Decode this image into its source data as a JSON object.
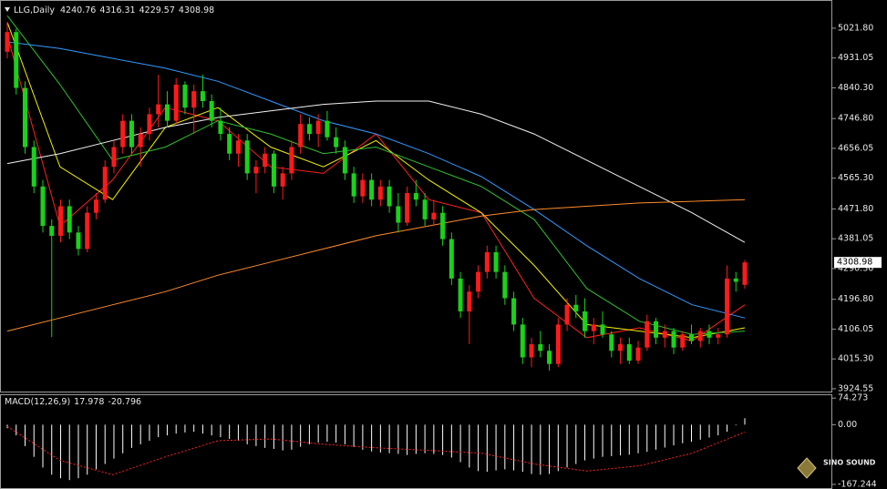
{
  "chart_data": [
    {
      "type": "candlestick",
      "title": "LLG,Daily",
      "up_color": "#ff1a1a",
      "down_color": "#19d219",
      "candles": [
        [
          4950,
          5040,
          4930,
          5010
        ],
        [
          5010,
          5020,
          4820,
          4840
        ],
        [
          4840,
          4860,
          4640,
          4660
        ],
        [
          4660,
          4680,
          4520,
          4540
        ],
        [
          4540,
          4560,
          4400,
          4420
        ],
        [
          4420,
          4440,
          4082,
          4390
        ],
        [
          4390,
          4500,
          4370,
          4480
        ],
        [
          4480,
          4500,
          4380,
          4400
        ],
        [
          4400,
          4420,
          4330,
          4350
        ],
        [
          4350,
          4480,
          4340,
          4460
        ],
        [
          4460,
          4520,
          4440,
          4500
        ],
        [
          4500,
          4620,
          4490,
          4600
        ],
        [
          4600,
          4680,
          4580,
          4660
        ],
        [
          4660,
          4760,
          4640,
          4740
        ],
        [
          4740,
          4760,
          4640,
          4660
        ],
        [
          4660,
          4720,
          4600,
          4700
        ],
        [
          4700,
          4780,
          4680,
          4760
        ],
        [
          4760,
          4880,
          4720,
          4790
        ],
        [
          4790,
          4830,
          4720,
          4740
        ],
        [
          4740,
          4870,
          4730,
          4850
        ],
        [
          4850,
          4860,
          4760,
          4780
        ],
        [
          4780,
          4850,
          4700,
          4830
        ],
        [
          4830,
          4880,
          4780,
          4800
        ],
        [
          4800,
          4820,
          4720,
          4740
        ],
        [
          4740,
          4780,
          4680,
          4700
        ],
        [
          4700,
          4720,
          4620,
          4640
        ],
        [
          4640,
          4700,
          4600,
          4680
        ],
        [
          4680,
          4700,
          4560,
          4580
        ],
        [
          4580,
          4620,
          4520,
          4600
        ],
        [
          4600,
          4660,
          4580,
          4640
        ],
        [
          4640,
          4650,
          4520,
          4540
        ],
        [
          4540,
          4600,
          4500,
          4580
        ],
        [
          4580,
          4680,
          4560,
          4660
        ],
        [
          4660,
          4760,
          4640,
          4730
        ],
        [
          4730,
          4750,
          4680,
          4700
        ],
        [
          4700,
          4760,
          4660,
          4740
        ],
        [
          4740,
          4770,
          4680,
          4690
        ],
        [
          4690,
          4720,
          4640,
          4660
        ],
        [
          4660,
          4680,
          4560,
          4580
        ],
        [
          4580,
          4600,
          4490,
          4510
        ],
        [
          4510,
          4580,
          4490,
          4560
        ],
        [
          4560,
          4580,
          4480,
          4500
        ],
        [
          4500,
          4560,
          4480,
          4540
        ],
        [
          4540,
          4560,
          4460,
          4480
        ],
        [
          4480,
          4520,
          4400,
          4430
        ],
        [
          4430,
          4540,
          4420,
          4520
        ],
        [
          4520,
          4560,
          4480,
          4500
        ],
        [
          4500,
          4520,
          4420,
          4440
        ],
        [
          4440,
          4500,
          4420,
          4460
        ],
        [
          4460,
          4480,
          4360,
          4380
        ],
        [
          4380,
          4400,
          4240,
          4260
        ],
        [
          4260,
          4280,
          4140,
          4160
        ],
        [
          4160,
          4240,
          4060,
          4220
        ],
        [
          4220,
          4300,
          4200,
          4280
        ],
        [
          4280,
          4360,
          4260,
          4340
        ],
        [
          4340,
          4360,
          4260,
          4280
        ],
        [
          4280,
          4300,
          4180,
          4200
        ],
        [
          4200,
          4220,
          4100,
          4120
        ],
        [
          4120,
          4140,
          4000,
          4020
        ],
        [
          4020,
          4080,
          3990,
          4060
        ],
        [
          4060,
          4100,
          4020,
          4040
        ],
        [
          4040,
          4060,
          3980,
          4000
        ],
        [
          4000,
          4140,
          3990,
          4120
        ],
        [
          4120,
          4200,
          4100,
          4180
        ],
        [
          4180,
          4210,
          4140,
          4160
        ],
        [
          4160,
          4200,
          4080,
          4100
        ],
        [
          4100,
          4140,
          4060,
          4120
        ],
        [
          4120,
          4160,
          4080,
          4090
        ],
        [
          4090,
          4100,
          4020,
          4040
        ],
        [
          4040,
          4080,
          4000,
          4060
        ],
        [
          4060,
          4080,
          4000,
          4010
        ],
        [
          4010,
          4070,
          4000,
          4050
        ],
        [
          4050,
          4150,
          4040,
          4130
        ],
        [
          4130,
          4140,
          4060,
          4080
        ],
        [
          4080,
          4120,
          4050,
          4100
        ],
        [
          4100,
          4110,
          4030,
          4050
        ],
        [
          4050,
          4100,
          4040,
          4090
        ],
        [
          4090,
          4120,
          4060,
          4070
        ],
        [
          4070,
          4110,
          4050,
          4100
        ],
        [
          4100,
          4120,
          4060,
          4080
        ],
        [
          4080,
          4110,
          4060,
          4090
        ],
        [
          4090,
          4300,
          4080,
          4260
        ],
        [
          4260,
          4280,
          4220,
          4250
        ],
        [
          4240.76,
          4316.31,
          4229.57,
          4308.98
        ]
      ],
      "series": [
        {
          "color": "#ff2020",
          "values": [
            5000,
            4420,
            4560,
            4780,
            4740,
            4600,
            4580,
            4700,
            4500,
            4460,
            4200,
            4080,
            4110,
            4070,
            4180
          ]
        },
        {
          "color": "#f0f000",
          "values": [
            5040,
            4600,
            4500,
            4720,
            4780,
            4660,
            4600,
            4680,
            4560,
            4460,
            4300,
            4120,
            4100,
            4080,
            4110
          ]
        },
        {
          "color": "#30c030",
          "values": [
            5060,
            4850,
            4620,
            4660,
            4740,
            4700,
            4640,
            4660,
            4600,
            4540,
            4440,
            4230,
            4130,
            4090,
            4100
          ]
        },
        {
          "color": "#3399ff",
          "values": [
            4980,
            4960,
            4930,
            4900,
            4860,
            4800,
            4740,
            4700,
            4640,
            4570,
            4470,
            4360,
            4260,
            4180,
            4140
          ]
        },
        {
          "color": "#f2f2f2",
          "values": [
            4610,
            4640,
            4680,
            4720,
            4750,
            4770,
            4790,
            4800,
            4800,
            4760,
            4700,
            4620,
            4540,
            4460,
            4370
          ]
        },
        {
          "color": "#ff8c2a",
          "values": [
            4100,
            4140,
            4180,
            4220,
            4270,
            4310,
            4350,
            4390,
            4420,
            4450,
            4470,
            4480,
            4490,
            4495,
            4500
          ]
        }
      ],
      "ylim": [
        3916,
        5102
      ],
      "yticks": [
        {
          "value": 5021.8,
          "label": "5021.80"
        },
        4931.05,
        {
          "value": 4840.3,
          "label": "4840.30"
        },
        {
          "value": 4746.8,
          "label": "4746.80"
        },
        4656.05,
        {
          "value": 4565.3,
          "label": "4565.30"
        },
        {
          "value": 4471.8,
          "label": "4471.80"
        },
        4381.05,
        {
          "value": 4290.3,
          "label": "4290.30"
        },
        {
          "value": 4196.8,
          "label": "4196.80"
        },
        4106.05,
        {
          "value": 4015.3,
          "label": "4015.30"
        },
        3924.55
      ]
    },
    {
      "type": "macd",
      "title": "MACD(12,26,9)",
      "color": "#ffffff",
      "values": [
        -10,
        -30,
        -60,
        -90,
        -120,
        -140,
        -150,
        -155,
        -150,
        -140,
        -125,
        -110,
        -95,
        -80,
        -65,
        -55,
        -45,
        -35,
        -30,
        -25,
        -22,
        -20,
        -25,
        -30,
        -35,
        -40,
        -45,
        -55,
        -60,
        -65,
        -68,
        -72,
        -70,
        -62,
        -55,
        -50,
        -48,
        -50,
        -55,
        -62,
        -70,
        -75,
        -78,
        -80,
        -82,
        -85,
        -82,
        -80,
        -82,
        -85,
        -92,
        -105,
        -120,
        -130,
        -132,
        -128,
        -125,
        -128,
        -132,
        -138,
        -140,
        -138,
        -130,
        -120,
        -110,
        -100,
        -95,
        -90,
        -88,
        -86,
        -84,
        -80,
        -76,
        -70,
        -64,
        -58,
        -52,
        -48,
        -42,
        -36,
        -30,
        -20,
        -2,
        17.978
      ],
      "signal": {
        "color": "#ff2020",
        "values": [
          -5,
          -100,
          -140,
          -90,
          -45,
          -40,
          -55,
          -65,
          -72,
          -80,
          -110,
          -130,
          -115,
          -80,
          -20.796
        ]
      },
      "ylim": [
        -175,
        85
      ],
      "yticks": [
        74.273,
        {
          "value": 0,
          "label": "0.00"
        },
        -167.244
      ]
    },
    {
      "type": "logo",
      "title": "SINO SOUND"
    }
  ]
}
